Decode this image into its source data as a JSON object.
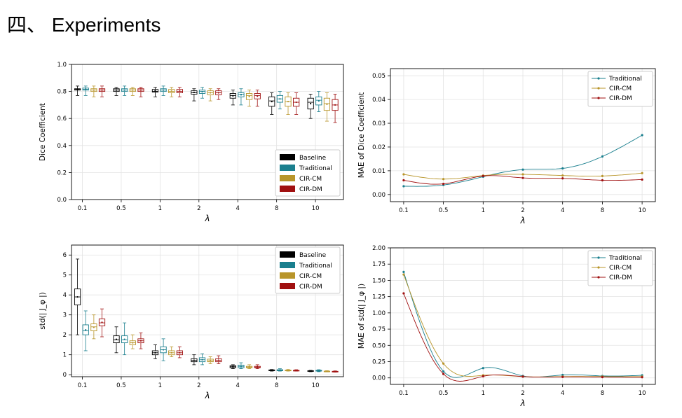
{
  "slide": {
    "title": "四、 Experiments"
  },
  "colors": {
    "Baseline": "#000000",
    "Traditional": "#1a7f8e",
    "CIR-CM": "#b8952a",
    "CIR-DM": "#a01010"
  },
  "chart_data": [
    {
      "type": "box",
      "ylabel": "Dice Coefficient",
      "xlabel": "λ",
      "categories": [
        "0.1",
        "0.5",
        "1",
        "2",
        "4",
        "8",
        "10"
      ],
      "ylim": [
        0,
        1.0
      ],
      "yticks": [
        "0.0",
        "0.2",
        "0.4",
        "0.6",
        "0.8",
        "1.0"
      ],
      "grid": true,
      "legend_position": "lower right",
      "series": [
        {
          "name": "Baseline",
          "boxes": [
            [
              0.77,
              0.81,
              0.815,
              0.82,
              0.84
            ],
            [
              0.77,
              0.8,
              0.81,
              0.82,
              0.83
            ],
            [
              0.76,
              0.795,
              0.8,
              0.815,
              0.83
            ],
            [
              0.73,
              0.78,
              0.79,
              0.805,
              0.82
            ],
            [
              0.7,
              0.75,
              0.77,
              0.785,
              0.81
            ],
            [
              0.63,
              0.69,
              0.73,
              0.76,
              0.79
            ],
            [
              0.6,
              0.67,
              0.72,
              0.75,
              0.78
            ]
          ]
        },
        {
          "name": "Traditional",
          "boxes": [
            [
              0.77,
              0.81,
              0.815,
              0.825,
              0.84
            ],
            [
              0.77,
              0.8,
              0.81,
              0.82,
              0.84
            ],
            [
              0.77,
              0.8,
              0.81,
              0.82,
              0.84
            ],
            [
              0.75,
              0.785,
              0.8,
              0.81,
              0.83
            ],
            [
              0.7,
              0.76,
              0.78,
              0.79,
              0.82
            ],
            [
              0.67,
              0.72,
              0.745,
              0.77,
              0.8
            ],
            [
              0.65,
              0.7,
              0.735,
              0.76,
              0.8
            ]
          ]
        },
        {
          "name": "CIR-CM",
          "boxes": [
            [
              0.76,
              0.8,
              0.81,
              0.82,
              0.84
            ],
            [
              0.77,
              0.8,
              0.81,
              0.82,
              0.83
            ],
            [
              0.76,
              0.79,
              0.8,
              0.815,
              0.83
            ],
            [
              0.73,
              0.775,
              0.79,
              0.805,
              0.82
            ],
            [
              0.69,
              0.74,
              0.77,
              0.785,
              0.81
            ],
            [
              0.63,
              0.69,
              0.725,
              0.76,
              0.79
            ],
            [
              0.58,
              0.66,
              0.71,
              0.75,
              0.79
            ]
          ]
        },
        {
          "name": "CIR-DM",
          "boxes": [
            [
              0.76,
              0.8,
              0.81,
              0.82,
              0.84
            ],
            [
              0.76,
              0.8,
              0.81,
              0.82,
              0.83
            ],
            [
              0.76,
              0.79,
              0.8,
              0.815,
              0.83
            ],
            [
              0.74,
              0.775,
              0.79,
              0.805,
              0.82
            ],
            [
              0.69,
              0.745,
              0.77,
              0.785,
              0.81
            ],
            [
              0.63,
              0.69,
              0.72,
              0.75,
              0.79
            ],
            [
              0.57,
              0.66,
              0.7,
              0.74,
              0.78
            ]
          ]
        }
      ]
    },
    {
      "type": "line",
      "ylabel": "MAE of Dice Coefficient",
      "xlabel": "λ",
      "x": [
        "0.1",
        "0.5",
        "1",
        "2",
        "4",
        "8",
        "10"
      ],
      "ylim": [
        -0.003,
        0.053
      ],
      "yticks": [
        "0.00",
        "0.01",
        "0.02",
        "0.03",
        "0.04",
        "0.05"
      ],
      "grid": true,
      "legend_position": "upper right",
      "series": [
        {
          "name": "Traditional",
          "values": [
            0.0035,
            0.004,
            0.0075,
            0.0105,
            0.011,
            0.016,
            0.025
          ]
        },
        {
          "name": "CIR-CM",
          "values": [
            0.0085,
            0.0065,
            0.008,
            0.0085,
            0.008,
            0.0078,
            0.009
          ]
        },
        {
          "name": "CIR-DM",
          "values": [
            0.006,
            0.0045,
            0.0078,
            0.007,
            0.0068,
            0.006,
            0.0063
          ]
        }
      ]
    },
    {
      "type": "box",
      "ylabel": "std(| J_φ |)",
      "xlabel": "λ",
      "categories": [
        "0.1",
        "0.5",
        "1",
        "2",
        "4",
        "8",
        "10"
      ],
      "ylim": [
        -0.1,
        6.5
      ],
      "yticks": [
        "0",
        "1",
        "2",
        "3",
        "4",
        "5",
        "6"
      ],
      "grid": true,
      "legend_position": "upper right",
      "series": [
        {
          "name": "Baseline",
          "boxes": [
            [
              2.0,
              3.5,
              3.9,
              4.3,
              5.8
            ],
            [
              1.1,
              1.6,
              1.75,
              1.95,
              2.4
            ],
            [
              0.8,
              1.0,
              1.1,
              1.2,
              1.5
            ],
            [
              0.5,
              0.65,
              0.72,
              0.8,
              1.0
            ],
            [
              0.3,
              0.35,
              0.4,
              0.45,
              0.5
            ],
            [
              0.18,
              0.2,
              0.22,
              0.24,
              0.26
            ],
            [
              0.15,
              0.17,
              0.18,
              0.2,
              0.22
            ]
          ]
        },
        {
          "name": "Traditional",
          "boxes": [
            [
              1.2,
              2.0,
              2.2,
              2.5,
              3.2
            ],
            [
              1.0,
              1.6,
              1.75,
              1.95,
              2.6
            ],
            [
              0.7,
              1.1,
              1.25,
              1.4,
              1.8
            ],
            [
              0.5,
              0.65,
              0.75,
              0.85,
              1.05
            ],
            [
              0.3,
              0.35,
              0.42,
              0.48,
              0.6
            ],
            [
              0.18,
              0.2,
              0.23,
              0.25,
              0.3
            ],
            [
              0.15,
              0.18,
              0.2,
              0.22,
              0.25
            ]
          ]
        },
        {
          "name": "CIR-CM",
          "boxes": [
            [
              1.8,
              2.2,
              2.4,
              2.55,
              3.0
            ],
            [
              1.3,
              1.5,
              1.6,
              1.7,
              2.0
            ],
            [
              0.9,
              1.0,
              1.1,
              1.2,
              1.4
            ],
            [
              0.55,
              0.65,
              0.7,
              0.78,
              0.9
            ],
            [
              0.3,
              0.35,
              0.38,
              0.42,
              0.5
            ],
            [
              0.18,
              0.2,
              0.21,
              0.23,
              0.26
            ],
            [
              0.14,
              0.16,
              0.17,
              0.18,
              0.2
            ]
          ]
        },
        {
          "name": "CIR-DM",
          "boxes": [
            [
              1.9,
              2.45,
              2.6,
              2.8,
              3.3
            ],
            [
              1.3,
              1.6,
              1.7,
              1.8,
              2.1
            ],
            [
              0.85,
              1.0,
              1.1,
              1.2,
              1.4
            ],
            [
              0.55,
              0.65,
              0.72,
              0.8,
              0.95
            ],
            [
              0.3,
              0.35,
              0.38,
              0.42,
              0.5
            ],
            [
              0.18,
              0.2,
              0.21,
              0.22,
              0.25
            ],
            [
              0.13,
              0.15,
              0.16,
              0.17,
              0.19
            ]
          ]
        }
      ]
    },
    {
      "type": "line",
      "ylabel": "MAE of std(| J_φ |)",
      "xlabel": "λ",
      "x": [
        "0.1",
        "0.5",
        "1",
        "2",
        "4",
        "8",
        "10"
      ],
      "ylim": [
        -0.1,
        2.0
      ],
      "yticks": [
        "0.00",
        "0.25",
        "0.50",
        "0.75",
        "1.00",
        "1.25",
        "1.50",
        "1.75",
        "2.00"
      ],
      "grid": true,
      "legend_position": "upper right",
      "series": [
        {
          "name": "Traditional",
          "values": [
            1.63,
            0.1,
            0.15,
            0.03,
            0.045,
            0.03,
            0.04
          ]
        },
        {
          "name": "CIR-CM",
          "values": [
            1.59,
            0.22,
            0.04,
            0.02,
            0.02,
            0.02,
            0.02
          ]
        },
        {
          "name": "CIR-DM",
          "values": [
            1.3,
            0.06,
            0.025,
            0.02,
            0.015,
            0.012,
            0.01
          ]
        }
      ]
    }
  ]
}
